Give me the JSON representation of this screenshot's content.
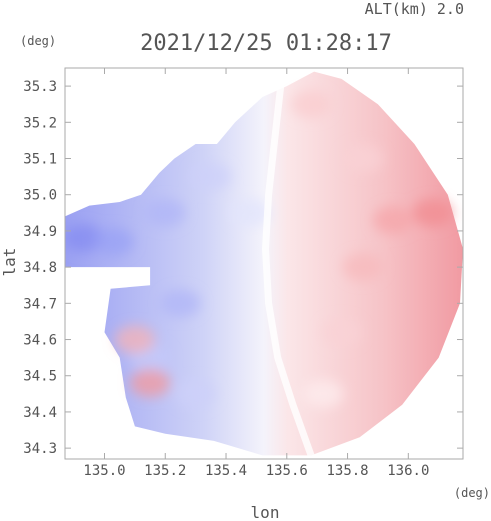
{
  "header": {
    "altitude_label": "ALT(km) 2.0",
    "timestamp": "2021/12/25 01:28:17",
    "lat_unit": "(deg)",
    "lon_unit": "(deg)"
  },
  "colors": {
    "frame": "#aaaaaa",
    "text": "#555555",
    "negative": "#6f78f0",
    "positive": "#f07f86",
    "neutral": "#ffffff"
  },
  "chart_data": {
    "type": "heatmap",
    "title": "2021/12/25 01:28:17",
    "subtitle": "ALT(km) 2.0",
    "xlabel": "lon",
    "ylabel": "lat",
    "x_unit": "(deg)",
    "y_unit": "(deg)",
    "xlim": [
      134.87,
      136.18
    ],
    "ylim": [
      34.27,
      35.35
    ],
    "xticks": [
      135.0,
      135.2,
      135.4,
      135.6,
      135.8,
      136.0
    ],
    "xtick_labels": [
      "135.0",
      "135.2",
      "135.4",
      "135.6",
      "135.8",
      "136.0"
    ],
    "yticks": [
      34.3,
      34.4,
      34.5,
      34.6,
      34.7,
      34.8,
      34.9,
      35.0,
      35.1,
      35.2,
      35.3
    ],
    "ytick_labels": [
      "34.3",
      "34.4",
      "34.5",
      "34.6",
      "34.7",
      "34.8",
      "34.9",
      "35.0",
      "35.1",
      "35.2",
      "35.3"
    ],
    "grid": false,
    "legend": "none",
    "color_scale": "diverging blue (negative) - white (zero) - red (positive)",
    "scan_boundary_lonlat": [
      [
        135.69,
        35.34
      ],
      [
        135.78,
        35.32
      ],
      [
        135.9,
        35.25
      ],
      [
        136.02,
        35.14
      ],
      [
        136.13,
        35.0
      ],
      [
        136.18,
        34.85
      ],
      [
        136.17,
        34.7
      ],
      [
        136.1,
        34.55
      ],
      [
        135.98,
        34.42
      ],
      [
        135.84,
        34.33
      ],
      [
        135.68,
        34.28
      ],
      [
        135.52,
        34.28
      ],
      [
        135.36,
        34.32
      ],
      [
        135.2,
        34.34
      ],
      [
        135.1,
        34.36
      ],
      [
        135.07,
        34.44
      ],
      [
        135.05,
        34.55
      ],
      [
        135.0,
        34.62
      ],
      [
        135.02,
        34.74
      ],
      [
        135.15,
        34.75
      ],
      [
        135.15,
        34.8
      ],
      [
        134.87,
        34.8
      ],
      [
        134.87,
        34.94
      ],
      [
        134.95,
        34.97
      ],
      [
        135.05,
        34.98
      ],
      [
        135.12,
        35.0
      ],
      [
        135.18,
        35.06
      ],
      [
        135.23,
        35.1
      ],
      [
        135.3,
        35.14
      ],
      [
        135.37,
        35.14
      ],
      [
        135.43,
        35.2
      ],
      [
        135.52,
        35.27
      ],
      [
        135.6,
        35.3
      ]
    ],
    "zero_line_lonlat": [
      [
        135.58,
        35.3
      ],
      [
        135.56,
        35.15
      ],
      [
        135.54,
        35.0
      ],
      [
        135.53,
        34.85
      ],
      [
        135.54,
        34.7
      ],
      [
        135.57,
        34.55
      ],
      [
        135.62,
        34.42
      ],
      [
        135.68,
        34.28
      ]
    ],
    "patches": [
      {
        "lon": 134.93,
        "lat": 34.88,
        "value": -0.85
      },
      {
        "lon": 135.03,
        "lat": 34.87,
        "value": -0.7
      },
      {
        "lon": 135.2,
        "lat": 34.95,
        "value": -0.55
      },
      {
        "lon": 135.35,
        "lat": 35.05,
        "value": -0.35
      },
      {
        "lon": 135.25,
        "lat": 34.7,
        "value": -0.55
      },
      {
        "lon": 135.15,
        "lat": 34.55,
        "value": -0.4
      },
      {
        "lon": 135.3,
        "lat": 34.45,
        "value": -0.35
      },
      {
        "lon": 135.48,
        "lat": 34.95,
        "value": -0.2
      },
      {
        "lon": 135.68,
        "lat": 35.25,
        "value": 0.4
      },
      {
        "lon": 135.85,
        "lat": 35.1,
        "value": 0.35
      },
      {
        "lon": 136.08,
        "lat": 34.95,
        "value": 0.9
      },
      {
        "lon": 135.95,
        "lat": 34.93,
        "value": 0.7
      },
      {
        "lon": 135.85,
        "lat": 34.8,
        "value": 0.55
      },
      {
        "lon": 135.78,
        "lat": 34.62,
        "value": 0.35
      },
      {
        "lon": 135.72,
        "lat": 34.45,
        "value": 0.15
      },
      {
        "lon": 135.1,
        "lat": 34.6,
        "value": 0.6
      },
      {
        "lon": 135.15,
        "lat": 34.48,
        "value": 0.8
      }
    ]
  }
}
